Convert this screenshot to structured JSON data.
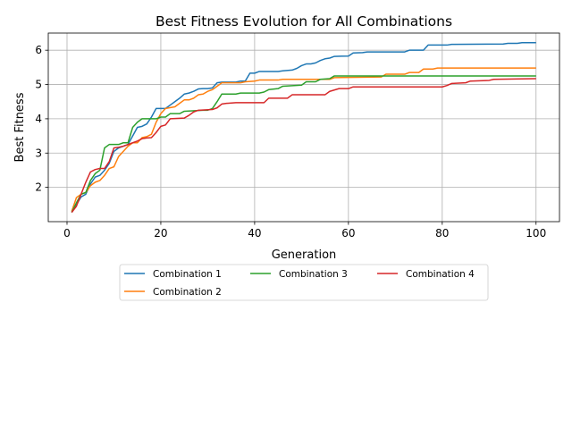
{
  "chart_data": {
    "type": "line",
    "title": "Best Fitness Evolution for All Combinations",
    "xlabel": "Generation",
    "ylabel": "Best Fitness",
    "xlim": [
      -4,
      105
    ],
    "ylim": [
      1.0,
      6.5
    ],
    "xticks": [
      0,
      20,
      40,
      60,
      80,
      100
    ],
    "yticks": [
      2,
      3,
      4,
      5,
      6
    ],
    "grid": true,
    "legend_position": "below",
    "series": [
      {
        "name": "Combination 1",
        "color": "#1f77b4",
        "points": [
          [
            1,
            1.27
          ],
          [
            2,
            1.5
          ],
          [
            3,
            1.72
          ],
          [
            4,
            1.8
          ],
          [
            5,
            2.1
          ],
          [
            6,
            2.3
          ],
          [
            7,
            2.35
          ],
          [
            8,
            2.5
          ],
          [
            9,
            2.7
          ],
          [
            10,
            3.05
          ],
          [
            11,
            3.15
          ],
          [
            12,
            3.2
          ],
          [
            13,
            3.25
          ],
          [
            14,
            3.5
          ],
          [
            15,
            3.75
          ],
          [
            16,
            3.78
          ],
          [
            17,
            3.85
          ],
          [
            18,
            4.05
          ],
          [
            19,
            4.3
          ],
          [
            20,
            4.3
          ],
          [
            21,
            4.3
          ],
          [
            22,
            4.4
          ],
          [
            23,
            4.5
          ],
          [
            24,
            4.6
          ],
          [
            25,
            4.72
          ],
          [
            26,
            4.75
          ],
          [
            27,
            4.8
          ],
          [
            28,
            4.87
          ],
          [
            29,
            4.88
          ],
          [
            30,
            4.88
          ],
          [
            31,
            4.9
          ],
          [
            32,
            5.05
          ],
          [
            33,
            5.07
          ],
          [
            34,
            5.07
          ],
          [
            36,
            5.07
          ],
          [
            37,
            5.1
          ],
          [
            38,
            5.1
          ],
          [
            39,
            5.33
          ],
          [
            40,
            5.33
          ],
          [
            41,
            5.38
          ],
          [
            45,
            5.38
          ],
          [
            46,
            5.4
          ],
          [
            48,
            5.42
          ],
          [
            49,
            5.47
          ],
          [
            50,
            5.55
          ],
          [
            51,
            5.6
          ],
          [
            52,
            5.6
          ],
          [
            53,
            5.63
          ],
          [
            54,
            5.7
          ],
          [
            55,
            5.75
          ],
          [
            56,
            5.77
          ],
          [
            57,
            5.82
          ],
          [
            60,
            5.83
          ],
          [
            61,
            5.92
          ],
          [
            63,
            5.93
          ],
          [
            64,
            5.95
          ],
          [
            72,
            5.95
          ],
          [
            73,
            6.0
          ],
          [
            76,
            6.0
          ],
          [
            77,
            6.15
          ],
          [
            81,
            6.15
          ],
          [
            82,
            6.17
          ],
          [
            93,
            6.18
          ],
          [
            94,
            6.2
          ],
          [
            96,
            6.2
          ],
          [
            97,
            6.22
          ],
          [
            100,
            6.22
          ]
        ]
      },
      {
        "name": "Combination 2",
        "color": "#ff7f0e",
        "points": [
          [
            1,
            1.3
          ],
          [
            2,
            1.7
          ],
          [
            3,
            1.8
          ],
          [
            4,
            1.85
          ],
          [
            5,
            2.05
          ],
          [
            6,
            2.15
          ],
          [
            7,
            2.2
          ],
          [
            8,
            2.35
          ],
          [
            9,
            2.55
          ],
          [
            10,
            2.6
          ],
          [
            11,
            2.9
          ],
          [
            12,
            3.05
          ],
          [
            13,
            3.2
          ],
          [
            14,
            3.3
          ],
          [
            15,
            3.3
          ],
          [
            16,
            3.45
          ],
          [
            17,
            3.48
          ],
          [
            18,
            3.55
          ],
          [
            19,
            3.9
          ],
          [
            20,
            4.15
          ],
          [
            21,
            4.3
          ],
          [
            23,
            4.35
          ],
          [
            24,
            4.45
          ],
          [
            25,
            4.55
          ],
          [
            26,
            4.55
          ],
          [
            27,
            4.6
          ],
          [
            28,
            4.7
          ],
          [
            29,
            4.72
          ],
          [
            30,
            4.8
          ],
          [
            31,
            4.85
          ],
          [
            32,
            4.95
          ],
          [
            33,
            5.05
          ],
          [
            37,
            5.05
          ],
          [
            38,
            5.08
          ],
          [
            40,
            5.1
          ],
          [
            41,
            5.13
          ],
          [
            45,
            5.13
          ],
          [
            46,
            5.15
          ],
          [
            56,
            5.15
          ],
          [
            57,
            5.2
          ],
          [
            67,
            5.22
          ],
          [
            68,
            5.3
          ],
          [
            72,
            5.3
          ],
          [
            73,
            5.35
          ],
          [
            75,
            5.35
          ],
          [
            76,
            5.45
          ],
          [
            78,
            5.45
          ],
          [
            79,
            5.48
          ],
          [
            100,
            5.48
          ]
        ]
      },
      {
        "name": "Combination 3",
        "color": "#2ca02c",
        "points": [
          [
            1,
            1.27
          ],
          [
            2,
            1.55
          ],
          [
            3,
            1.8
          ],
          [
            4,
            1.85
          ],
          [
            5,
            2.2
          ],
          [
            6,
            2.4
          ],
          [
            7,
            2.5
          ],
          [
            8,
            3.15
          ],
          [
            9,
            3.25
          ],
          [
            10,
            3.25
          ],
          [
            11,
            3.25
          ],
          [
            12,
            3.3
          ],
          [
            13,
            3.3
          ],
          [
            14,
            3.75
          ],
          [
            15,
            3.9
          ],
          [
            16,
            4.0
          ],
          [
            18,
            4.0
          ],
          [
            19,
            4.0
          ],
          [
            20,
            4.05
          ],
          [
            21,
            4.05
          ],
          [
            22,
            4.15
          ],
          [
            24,
            4.15
          ],
          [
            25,
            4.22
          ],
          [
            29,
            4.25
          ],
          [
            30,
            4.25
          ],
          [
            31,
            4.3
          ],
          [
            32,
            4.5
          ],
          [
            33,
            4.72
          ],
          [
            36,
            4.72
          ],
          [
            37,
            4.75
          ],
          [
            41,
            4.75
          ],
          [
            42,
            4.78
          ],
          [
            43,
            4.85
          ],
          [
            45,
            4.88
          ],
          [
            46,
            4.95
          ],
          [
            50,
            4.98
          ],
          [
            51,
            5.08
          ],
          [
            53,
            5.08
          ],
          [
            54,
            5.15
          ],
          [
            56,
            5.17
          ],
          [
            57,
            5.25
          ],
          [
            100,
            5.25
          ]
        ]
      },
      {
        "name": "Combination 4",
        "color": "#d62728",
        "points": [
          [
            1,
            1.27
          ],
          [
            2,
            1.45
          ],
          [
            3,
            1.8
          ],
          [
            4,
            2.15
          ],
          [
            5,
            2.45
          ],
          [
            6,
            2.52
          ],
          [
            7,
            2.55
          ],
          [
            8,
            2.55
          ],
          [
            9,
            2.75
          ],
          [
            10,
            3.15
          ],
          [
            11,
            3.17
          ],
          [
            12,
            3.2
          ],
          [
            13,
            3.25
          ],
          [
            14,
            3.3
          ],
          [
            15,
            3.35
          ],
          [
            16,
            3.42
          ],
          [
            17,
            3.44
          ],
          [
            18,
            3.45
          ],
          [
            19,
            3.6
          ],
          [
            20,
            3.78
          ],
          [
            21,
            3.82
          ],
          [
            22,
            4.0
          ],
          [
            25,
            4.02
          ],
          [
            26,
            4.1
          ],
          [
            27,
            4.2
          ],
          [
            28,
            4.25
          ],
          [
            31,
            4.27
          ],
          [
            32,
            4.32
          ],
          [
            33,
            4.43
          ],
          [
            34,
            4.45
          ],
          [
            36,
            4.47
          ],
          [
            42,
            4.47
          ],
          [
            43,
            4.6
          ],
          [
            47,
            4.6
          ],
          [
            48,
            4.7
          ],
          [
            55,
            4.7
          ],
          [
            56,
            4.8
          ],
          [
            58,
            4.88
          ],
          [
            60,
            4.88
          ],
          [
            61,
            4.93
          ],
          [
            80,
            4.93
          ],
          [
            81,
            4.97
          ],
          [
            82,
            5.03
          ],
          [
            85,
            5.05
          ],
          [
            86,
            5.1
          ],
          [
            90,
            5.12
          ],
          [
            91,
            5.15
          ],
          [
            100,
            5.17
          ]
        ]
      }
    ]
  }
}
